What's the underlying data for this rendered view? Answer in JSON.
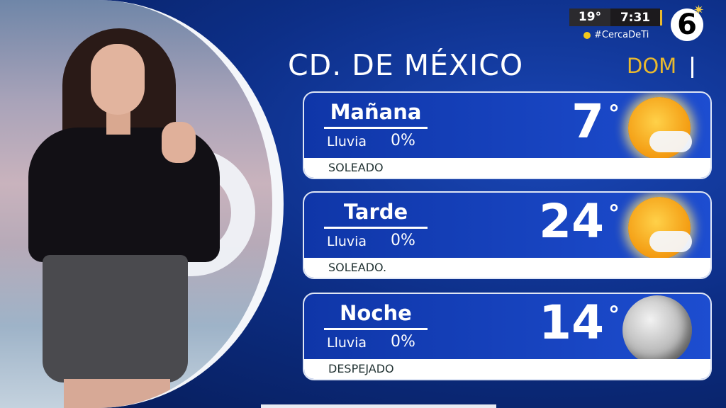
{
  "header": {
    "current_temp": "19°",
    "time": "7:31",
    "hashtag": "#CercaDeTi",
    "channel_logo": "6"
  },
  "title": {
    "city": "CD. DE MÉXICO",
    "day": "DOM"
  },
  "colors": {
    "accent": "#e9b92e",
    "card_blue": "#1d4dd0",
    "background": "#0b2a78"
  },
  "forecast": [
    {
      "period": "Mañana",
      "rain_label": "Lluvia",
      "rain_value": "0%",
      "temp": "7",
      "deg": "°",
      "condition": "SOLEADO",
      "icon": "sun-cloud-icon"
    },
    {
      "period": "Tarde",
      "rain_label": "Lluvia",
      "rain_value": "0%",
      "temp": "24",
      "deg": "°",
      "condition": "SOLEADO.",
      "icon": "sun-cloud-icon"
    },
    {
      "period": "Noche",
      "rain_label": "Lluvia",
      "rain_value": "0%",
      "temp": "14",
      "deg": "°",
      "condition": "DESPEJADO",
      "icon": "moon-icon"
    }
  ]
}
